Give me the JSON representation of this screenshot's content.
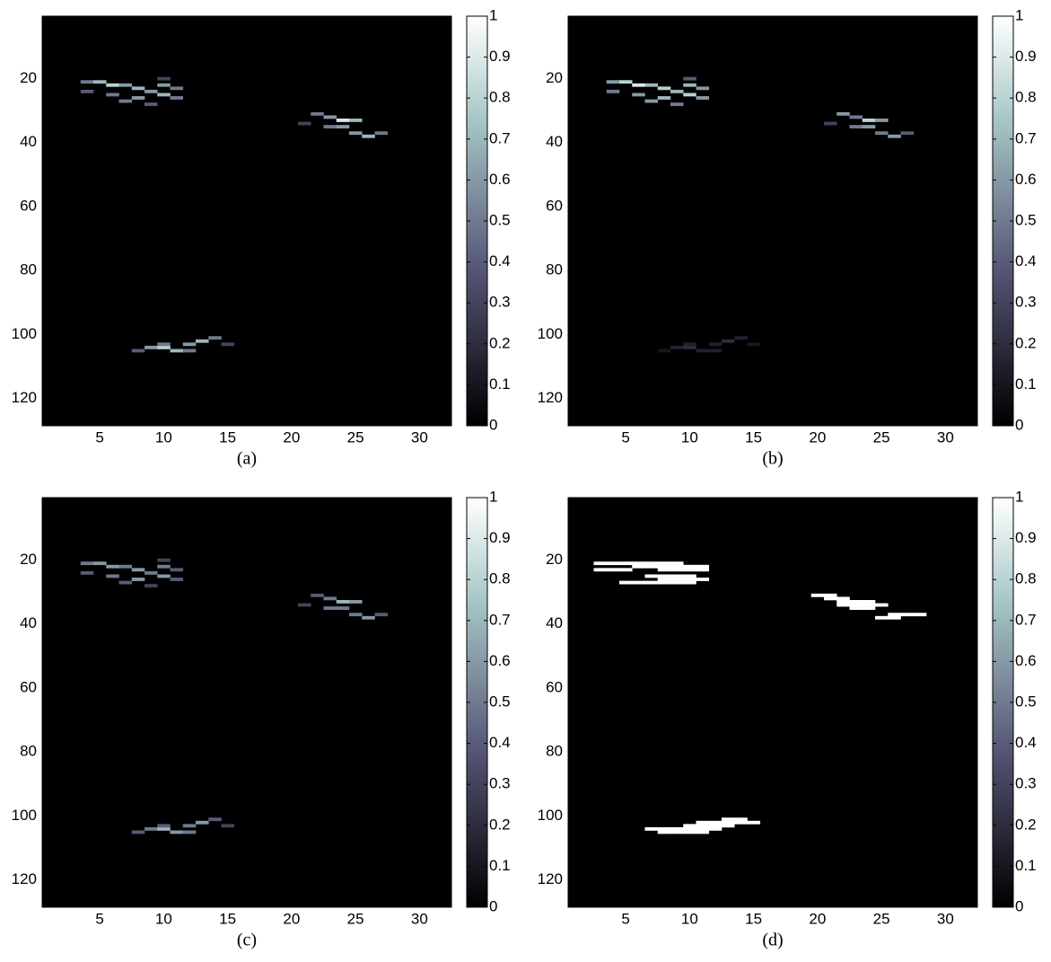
{
  "chart_data": [
    {
      "type": "heatmap",
      "caption": "(a)",
      "colormap": "bone",
      "xlim": [
        0.5,
        32.5
      ],
      "ylim": [
        0.5,
        128.5
      ],
      "xticks": [
        5,
        10,
        15,
        20,
        25,
        30
      ],
      "yticks": [
        20,
        40,
        60,
        80,
        100,
        120
      ],
      "clim": [
        0,
        1
      ],
      "cticks": [
        0,
        0.1,
        0.2,
        0.3,
        0.4,
        0.5,
        0.6,
        0.7,
        0.8,
        0.9,
        1
      ],
      "x": [
        4,
        5,
        6,
        7,
        8,
        9,
        10,
        11,
        4,
        6,
        8,
        10,
        11,
        7,
        9,
        10,
        22,
        23,
        24,
        25,
        23,
        24,
        25,
        26,
        27,
        21,
        9,
        10,
        11,
        12,
        13,
        14,
        8,
        12,
        15,
        10
      ],
      "y": [
        21,
        21,
        22,
        22,
        23,
        24,
        22,
        23,
        24,
        25,
        26,
        25,
        26,
        27,
        28,
        20,
        31,
        32,
        33,
        33,
        35,
        35,
        37,
        38,
        37,
        34,
        104,
        104,
        105,
        103,
        102,
        101,
        105,
        105,
        103,
        103
      ],
      "values": [
        0.5,
        0.7,
        0.8,
        0.6,
        0.7,
        0.6,
        0.6,
        0.5,
        0.4,
        0.5,
        0.6,
        0.7,
        0.5,
        0.5,
        0.4,
        0.3,
        0.5,
        0.6,
        0.9,
        0.7,
        0.5,
        0.6,
        0.6,
        0.7,
        0.5,
        0.3,
        0.6,
        0.8,
        0.7,
        0.6,
        0.7,
        0.5,
        0.4,
        0.5,
        0.3,
        0.5
      ]
    },
    {
      "type": "heatmap",
      "caption": "(b)",
      "colormap": "bone",
      "xlim": [
        0.5,
        32.5
      ],
      "ylim": [
        0.5,
        128.5
      ],
      "xticks": [
        5,
        10,
        15,
        20,
        25,
        30
      ],
      "yticks": [
        20,
        40,
        60,
        80,
        100,
        120
      ],
      "clim": [
        0,
        1
      ],
      "cticks": [
        0,
        0.1,
        0.2,
        0.3,
        0.4,
        0.5,
        0.6,
        0.7,
        0.8,
        0.9,
        1
      ],
      "x": [
        4,
        5,
        6,
        7,
        8,
        9,
        10,
        11,
        4,
        6,
        8,
        10,
        11,
        7,
        9,
        10,
        22,
        23,
        24,
        25,
        23,
        24,
        25,
        26,
        27,
        21,
        9,
        10,
        11,
        12,
        13,
        14,
        8,
        12,
        15,
        10
      ],
      "y": [
        21,
        21,
        22,
        22,
        23,
        24,
        22,
        23,
        24,
        25,
        26,
        25,
        26,
        27,
        28,
        20,
        31,
        32,
        33,
        33,
        35,
        35,
        37,
        38,
        37,
        34,
        104,
        104,
        105,
        103,
        102,
        101,
        105,
        105,
        103,
        103
      ],
      "values": [
        0.6,
        0.8,
        0.9,
        0.7,
        0.8,
        0.7,
        0.7,
        0.6,
        0.5,
        0.6,
        0.7,
        0.8,
        0.6,
        0.6,
        0.5,
        0.4,
        0.6,
        0.5,
        0.8,
        0.6,
        0.5,
        0.6,
        0.5,
        0.6,
        0.4,
        0.3,
        0.15,
        0.2,
        0.15,
        0.15,
        0.2,
        0.15,
        0.1,
        0.15,
        0.1,
        0.15
      ]
    },
    {
      "type": "heatmap",
      "caption": "(c)",
      "colormap": "bone",
      "xlim": [
        0.5,
        32.5
      ],
      "ylim": [
        0.5,
        128.5
      ],
      "xticks": [
        5,
        10,
        15,
        20,
        25,
        30
      ],
      "yticks": [
        20,
        40,
        60,
        80,
        100,
        120
      ],
      "clim": [
        0,
        1
      ],
      "cticks": [
        0,
        0.1,
        0.2,
        0.3,
        0.4,
        0.5,
        0.6,
        0.7,
        0.8,
        0.9,
        1
      ],
      "x": [
        4,
        5,
        6,
        7,
        8,
        9,
        10,
        11,
        4,
        6,
        8,
        10,
        11,
        7,
        9,
        10,
        22,
        23,
        24,
        25,
        23,
        24,
        25,
        26,
        27,
        21,
        9,
        10,
        11,
        12,
        13,
        14,
        8,
        12,
        15,
        10
      ],
      "y": [
        21,
        21,
        22,
        22,
        23,
        24,
        22,
        23,
        24,
        25,
        26,
        25,
        26,
        27,
        28,
        20,
        31,
        32,
        33,
        33,
        35,
        35,
        37,
        38,
        37,
        34,
        104,
        104,
        105,
        103,
        102,
        101,
        105,
        105,
        103,
        103
      ],
      "values": [
        0.5,
        0.6,
        0.6,
        0.5,
        0.6,
        0.5,
        0.5,
        0.4,
        0.4,
        0.5,
        0.6,
        0.6,
        0.4,
        0.4,
        0.3,
        0.3,
        0.4,
        0.5,
        0.7,
        0.6,
        0.5,
        0.5,
        0.5,
        0.6,
        0.4,
        0.3,
        0.5,
        0.7,
        0.6,
        0.5,
        0.6,
        0.4,
        0.4,
        0.5,
        0.3,
        0.4
      ]
    },
    {
      "type": "heatmap",
      "caption": "(d)",
      "colormap": "bone",
      "xlim": [
        0.5,
        32.5
      ],
      "ylim": [
        0.5,
        128.5
      ],
      "xticks": [
        5,
        10,
        15,
        20,
        25,
        30
      ],
      "yticks": [
        20,
        40,
        60,
        80,
        100,
        120
      ],
      "clim": [
        0,
        1
      ],
      "cticks": [
        0,
        0.1,
        0.2,
        0.3,
        0.4,
        0.5,
        0.6,
        0.7,
        0.8,
        0.9,
        1
      ],
      "x": [
        3,
        4,
        5,
        6,
        7,
        8,
        9,
        6,
        7,
        8,
        9,
        10,
        11,
        3,
        4,
        5,
        8,
        9,
        10,
        11,
        7,
        8,
        9,
        10,
        8,
        9,
        10,
        11,
        5,
        6,
        7,
        8,
        9,
        10,
        20,
        21,
        21,
        22,
        22,
        23,
        24,
        22,
        23,
        24,
        25,
        23,
        24,
        26,
        27,
        28,
        25,
        26,
        13,
        14,
        11,
        12,
        13,
        14,
        15,
        10,
        11,
        12,
        13,
        7,
        8,
        9,
        10,
        11,
        12,
        8,
        9,
        10,
        11
      ],
      "y": [
        21,
        21,
        21,
        21,
        21,
        21,
        21,
        22,
        22,
        22,
        22,
        22,
        22,
        23,
        23,
        23,
        23,
        23,
        23,
        23,
        25,
        25,
        25,
        25,
        26,
        26,
        26,
        26,
        27,
        27,
        27,
        27,
        27,
        27,
        31,
        31,
        32,
        32,
        33,
        33,
        33,
        34,
        34,
        34,
        34,
        35,
        35,
        37,
        37,
        37,
        38,
        38,
        101,
        101,
        102,
        102,
        102,
        102,
        102,
        103,
        103,
        103,
        103,
        104,
        104,
        104,
        104,
        104,
        104,
        105,
        105,
        105,
        105
      ],
      "values": [
        1,
        1,
        1,
        1,
        1,
        1,
        1,
        1,
        1,
        1,
        1,
        1,
        1,
        1,
        1,
        1,
        1,
        1,
        1,
        1,
        1,
        1,
        1,
        1,
        1,
        1,
        1,
        1,
        1,
        1,
        1,
        1,
        1,
        1,
        1,
        1,
        1,
        1,
        1,
        1,
        1,
        1,
        1,
        1,
        1,
        1,
        1,
        1,
        1,
        1,
        1,
        1,
        1,
        1,
        1,
        1,
        1,
        1,
        1,
        1,
        1,
        1,
        1,
        1,
        1,
        1,
        1,
        1,
        1,
        1,
        1,
        1,
        1
      ]
    }
  ]
}
